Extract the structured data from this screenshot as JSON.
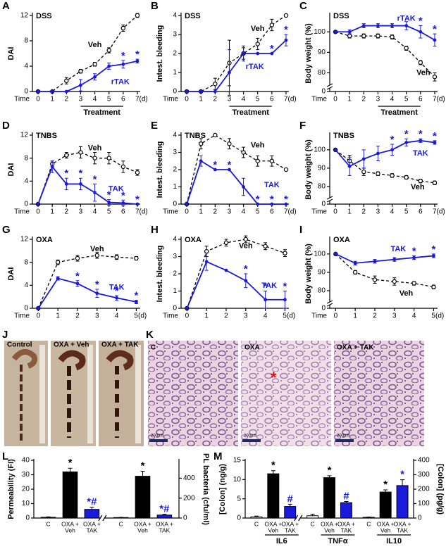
{
  "chart_data": [
    {
      "panel": "A",
      "type": "line",
      "label": "DSS",
      "xlabel": "Time",
      "ylabel": "DAI",
      "x": [
        0,
        1,
        2,
        3,
        4,
        5,
        6,
        7
      ],
      "xlim": [
        -0.4,
        7.2
      ],
      "xticks": [
        0,
        1,
        2,
        3,
        4,
        5,
        6,
        {
          "value": 7,
          "label": "7(d)"
        }
      ],
      "ylim": [
        0,
        12
      ],
      "yticks": [
        0,
        4,
        8,
        12
      ],
      "sig_label": "*",
      "treatment": {
        "label": "Treatment",
        "from": 3,
        "to": 6
      },
      "series": [
        {
          "name": "Veh",
          "color": "#000000",
          "dashed": true,
          "values": [
            0,
            0,
            1.7,
            3.2,
            4.3,
            6.5,
            10,
            12
          ],
          "errors": [
            0,
            0,
            0.5,
            0.3,
            0.3,
            0.4,
            0.5,
            0.3
          ]
        },
        {
          "name": "rTAK",
          "color": "#1a1adb",
          "dashed": false,
          "values": [
            0,
            0,
            0,
            1,
            2.3,
            4,
            4.3,
            4.8
          ],
          "errors": [
            0,
            0,
            0,
            0.9,
            0.5,
            0.5,
            0.6,
            0.3
          ],
          "sig_x": [
            6,
            7
          ]
        }
      ]
    },
    {
      "panel": "B",
      "type": "line",
      "label": "DSS",
      "xlabel": "Time",
      "ylabel": "Intest. bleeding",
      "x": [
        0,
        1,
        2,
        3,
        4,
        5,
        6,
        7
      ],
      "xlim": [
        -0.4,
        7.2
      ],
      "xticks": [
        0,
        1,
        2,
        3,
        4,
        5,
        6,
        {
          "value": 7,
          "label": "7(d)"
        }
      ],
      "ylim": [
        0,
        4
      ],
      "yticks": [
        0,
        1,
        2,
        3,
        4
      ],
      "sig_label": "*",
      "treatment": {
        "label": "Treatment",
        "from": 3,
        "to": 6
      },
      "series": [
        {
          "name": "Veh",
          "color": "#000000",
          "dashed": true,
          "values": [
            0,
            0,
            0.4,
            1.5,
            2,
            2.5,
            3.5,
            4
          ],
          "errors": [
            0,
            0,
            0.3,
            1.2,
            0.3,
            0.3,
            0.3,
            0
          ]
        },
        {
          "name": "rTAK",
          "color": "#1a1adb",
          "dashed": false,
          "values": [
            0,
            0,
            0,
            1,
            2,
            2,
            2,
            2.7
          ],
          "errors": [
            0,
            0,
            0,
            1.2,
            0.4,
            0,
            0,
            0.3
          ],
          "sig_x": [
            6,
            7
          ]
        }
      ]
    },
    {
      "panel": "C",
      "type": "line",
      "label": "DSS",
      "xlabel": "Time",
      "ylabel": "Body weight (%)",
      "x": [
        0,
        1,
        2,
        3,
        4,
        5,
        6,
        7
      ],
      "xlim": [
        -0.4,
        7.2
      ],
      "xticks": [
        0,
        1,
        2,
        3,
        4,
        5,
        6,
        {
          "value": 7,
          "label": "7(d)"
        }
      ],
      "ylim": [
        0,
        108
      ],
      "axis_break": [
        0,
        75
      ],
      "yticks": [
        0,
        80,
        90,
        100
      ],
      "sig_label": "*",
      "treatment": {
        "label": "Treatment",
        "from": 3,
        "to": 6
      },
      "series": [
        {
          "name": "Veh",
          "color": "#000000",
          "dashed": true,
          "values": [
            100,
            98,
            98,
            98,
            97.5,
            92,
            85,
            78
          ],
          "errors": [
            0,
            1,
            1,
            1,
            1,
            1,
            1,
            2
          ]
        },
        {
          "name": "rTAK",
          "color": "#1a1adb",
          "dashed": false,
          "values": [
            100,
            100,
            103,
            103,
            103,
            103,
            100,
            96
          ],
          "errors": [
            0,
            1,
            1,
            1,
            1,
            2,
            3,
            3
          ],
          "sig_x": [
            6,
            7
          ]
        }
      ]
    },
    {
      "panel": "D",
      "type": "line",
      "label": "TNBS",
      "xlabel": "Time",
      "ylabel": "DAI",
      "x": [
        0,
        1,
        2,
        3,
        4,
        5,
        6,
        7
      ],
      "xlim": [
        -0.4,
        7.2
      ],
      "xticks": [
        0,
        1,
        2,
        3,
        4,
        5,
        6,
        {
          "value": 7,
          "label": "7(d)"
        }
      ],
      "ylim": [
        0,
        12
      ],
      "yticks": [
        0,
        4,
        8,
        12
      ],
      "sig_label": "*",
      "series": [
        {
          "name": "Veh",
          "color": "#000000",
          "dashed": true,
          "values": [
            0,
            7,
            8.5,
            9,
            8,
            8,
            6.5,
            5.5
          ],
          "errors": [
            0,
            0.5,
            0.5,
            1,
            1,
            1,
            1,
            0.5
          ]
        },
        {
          "name": "TAK",
          "color": "#1a1adb",
          "dashed": false,
          "values": [
            0,
            6.5,
            3.5,
            3.5,
            2,
            0.3,
            0.2,
            0
          ],
          "errors": [
            0,
            1,
            1,
            1,
            1.5,
            0.5,
            0.5,
            0
          ],
          "sig_x": [
            2,
            3,
            4,
            5,
            6,
            7
          ]
        }
      ]
    },
    {
      "panel": "E",
      "type": "line",
      "label": "TNBS",
      "xlabel": "Time",
      "ylabel": "Intest. bleeding",
      "x": [
        0,
        1,
        2,
        3,
        4,
        5,
        6,
        7
      ],
      "xlim": [
        -0.4,
        7.2
      ],
      "xticks": [
        0,
        1,
        2,
        3,
        4,
        5,
        6,
        {
          "value": 7,
          "label": "7(d)"
        }
      ],
      "ylim": [
        0,
        4
      ],
      "yticks": [
        0,
        1,
        2,
        3,
        4
      ],
      "sig_label": "*",
      "series": [
        {
          "name": "Veh",
          "color": "#000000",
          "dashed": true,
          "values": [
            0,
            3.5,
            4,
            3.5,
            3,
            2.5,
            2.5,
            2
          ],
          "errors": [
            0,
            0.3,
            0,
            0.3,
            0.3,
            0.3,
            0.3,
            0
          ]
        },
        {
          "name": "TAK",
          "color": "#1a1adb",
          "dashed": false,
          "values": [
            0,
            2.5,
            2,
            2,
            1,
            0,
            0,
            0
          ],
          "errors": [
            0,
            0.3,
            0,
            0,
            0.5,
            0,
            0,
            0
          ],
          "sig_x": [
            2,
            3,
            5,
            6,
            7
          ]
        }
      ]
    },
    {
      "panel": "F",
      "type": "line",
      "label": "TNBS",
      "xlabel": "Time",
      "ylabel": "Body weight (%)",
      "x": [
        0,
        1,
        2,
        3,
        4,
        5,
        6,
        7
      ],
      "xlim": [
        -0.4,
        7.2
      ],
      "xticks": [
        0,
        1,
        2,
        3,
        4,
        5,
        6,
        {
          "value": 7,
          "label": "7(d)"
        }
      ],
      "ylim": [
        0,
        108
      ],
      "axis_break": [
        0,
        75
      ],
      "yticks": [
        0,
        80,
        90,
        100
      ],
      "sig_label": "*",
      "series": [
        {
          "name": "Veh",
          "color": "#000000",
          "dashed": true,
          "values": [
            100,
            94,
            88,
            87,
            86,
            85,
            83,
            82
          ],
          "errors": [
            0,
            3,
            2,
            1,
            1,
            1,
            1,
            1
          ]
        },
        {
          "name": "TAK",
          "color": "#1a1adb",
          "dashed": false,
          "values": [
            100,
            91,
            95,
            98,
            100,
            104,
            105,
            104
          ],
          "errors": [
            0,
            5,
            5,
            4,
            3,
            2,
            1,
            1
          ],
          "sig_x": [
            4,
            5,
            6,
            7
          ]
        }
      ]
    },
    {
      "panel": "G",
      "type": "line",
      "label": "OXA",
      "xlabel": "Time",
      "ylabel": "DAI",
      "x": [
        0,
        1,
        2,
        3,
        4,
        5
      ],
      "xlim": [
        -0.3,
        5.2
      ],
      "xticks": [
        0,
        1,
        2,
        3,
        4,
        {
          "value": 5,
          "label": "5(d)"
        }
      ],
      "ylim": [
        0,
        12
      ],
      "yticks": [
        0,
        4,
        8,
        12
      ],
      "sig_label": "*",
      "series": [
        {
          "name": "Veh",
          "color": "#000000",
          "dashed": true,
          "values": [
            0,
            8,
            8.7,
            9.2,
            8.9,
            8.7
          ],
          "errors": [
            0,
            0.4,
            0.5,
            0.5,
            0.4,
            0.3
          ]
        },
        {
          "name": "TAK",
          "color": "#1a1adb",
          "dashed": false,
          "values": [
            0,
            5.2,
            4.3,
            2.6,
            1.8,
            1.1
          ],
          "errors": [
            0,
            0.3,
            0.5,
            0.7,
            0.4,
            0.3
          ],
          "sig_x": [
            2,
            3,
            4,
            5
          ]
        }
      ]
    },
    {
      "panel": "H",
      "type": "line",
      "label": "OXA",
      "xlabel": "Time",
      "ylabel": "Intest. bleeding",
      "x": [
        0,
        1,
        2,
        3,
        4,
        5
      ],
      "xlim": [
        -0.3,
        5.2
      ],
      "xticks": [
        0,
        1,
        2,
        3,
        4,
        {
          "value": 5,
          "label": "5(d)"
        }
      ],
      "ylim": [
        0,
        4
      ],
      "yticks": [
        0,
        1,
        2,
        3,
        4
      ],
      "sig_label": "*",
      "series": [
        {
          "name": "Veh",
          "color": "#000000",
          "dashed": true,
          "values": [
            0,
            3.3,
            3.8,
            4,
            3.6,
            3.2
          ],
          "errors": [
            0,
            0.3,
            0.2,
            0.2,
            0.2,
            0.2
          ]
        },
        {
          "name": "TAK",
          "color": "#1a1adb",
          "dashed": false,
          "values": [
            0,
            2.7,
            2.2,
            1.6,
            0.5,
            0.5
          ],
          "errors": [
            0,
            0.5,
            0,
            0.4,
            0.5,
            0.5
          ],
          "sig_x": [
            3,
            4,
            5
          ]
        }
      ]
    },
    {
      "panel": "I",
      "type": "line",
      "label": "OXA",
      "xlabel": "Time",
      "ylabel": "Body weight (%)",
      "x": [
        0,
        1,
        2,
        3,
        4,
        5
      ],
      "xlim": [
        -0.3,
        5.2
      ],
      "xticks": [
        0,
        1,
        2,
        3,
        4,
        {
          "value": 5,
          "label": "5(d)"
        }
      ],
      "ylim": [
        0,
        108
      ],
      "axis_break": [
        0,
        75
      ],
      "yticks": [
        0,
        80,
        90,
        100
      ],
      "sig_label": "*",
      "series": [
        {
          "name": "Veh",
          "color": "#000000",
          "dashed": true,
          "values": [
            100,
            90,
            86,
            85,
            84,
            82
          ],
          "errors": [
            0,
            1,
            2,
            2,
            1,
            1
          ]
        },
        {
          "name": "TAK",
          "color": "#1a1adb",
          "dashed": false,
          "values": [
            100,
            95,
            96,
            97,
            98,
            99
          ],
          "errors": [
            0,
            1,
            1,
            1,
            1,
            1
          ],
          "sig_x": [
            4,
            5
          ]
        }
      ]
    },
    {
      "panel": "L",
      "type": "bar",
      "ylabel": "Permeability (FI)",
      "y2label": "PL bacteria (cfu/ml)",
      "categories": [
        [
          "C"
        ],
        [
          "OXA +",
          "Veh"
        ],
        [
          "OXA +",
          "TAK"
        ]
      ],
      "colors": [
        "#ffffff",
        "#000000",
        "#1a1adb"
      ],
      "ylim": [
        0,
        40
      ],
      "yticks": [
        0,
        10,
        20,
        30,
        40
      ],
      "y2lim": [
        0,
        580
      ],
      "y2ticks": [
        0,
        200,
        400
      ],
      "x_breaks": [
        0
      ],
      "groups": [
        {
          "axis": "y",
          "values": [
            0.5,
            32,
            6
          ],
          "errors": [
            0.3,
            2.5,
            1.5
          ],
          "sig": [
            null,
            "*",
            "*#"
          ]
        },
        {
          "axis": "y2",
          "values": [
            5,
            420,
            30
          ],
          "errors": [
            2,
            50,
            8
          ],
          "sig": [
            null,
            "*",
            "*#"
          ]
        }
      ]
    },
    {
      "panel": "M",
      "type": "bar",
      "ylabel": "[Colon] (ng/g)",
      "y2label": "[Colon] (pg/g)",
      "categories": [
        [
          "C"
        ],
        [
          "OXA +",
          "Veh"
        ],
        [
          "OXA +",
          "TAK"
        ]
      ],
      "colors": [
        "#ffffff",
        "#000000",
        "#1a1adb"
      ],
      "ylim": [
        0,
        15
      ],
      "yticks": [
        0,
        5,
        10,
        15
      ],
      "y2lim": [
        0,
        400
      ],
      "y2ticks": [
        0,
        100,
        200,
        300,
        400
      ],
      "x_breaks": [
        0
      ],
      "groups": [
        {
          "name": "IL6",
          "axis": "y",
          "values": [
            0.3,
            11.5,
            3
          ],
          "errors": [
            0.2,
            0.8,
            0.6
          ],
          "sig": [
            null,
            "*",
            "#"
          ]
        },
        {
          "name": "TNFα",
          "axis": "y",
          "values": [
            0.6,
            10.5,
            4
          ],
          "errors": [
            0.4,
            0.5,
            0.3
          ],
          "sig": [
            null,
            "*",
            "#"
          ]
        },
        {
          "name": "IL10",
          "axis": "y2",
          "values": [
            5,
            180,
            225
          ],
          "errors": [
            2,
            15,
            40
          ],
          "sig": [
            null,
            "*",
            "*"
          ]
        }
      ]
    }
  ],
  "photos": {
    "J": {
      "letter": "J",
      "labels": [
        "Control",
        "OXA + Veh",
        "OXA + TAK"
      ]
    },
    "K": {
      "letter": "K",
      "labels": [
        "C",
        "OXA",
        "OXA + TAK"
      ],
      "scale": "200µm",
      "marker": "*"
    }
  }
}
